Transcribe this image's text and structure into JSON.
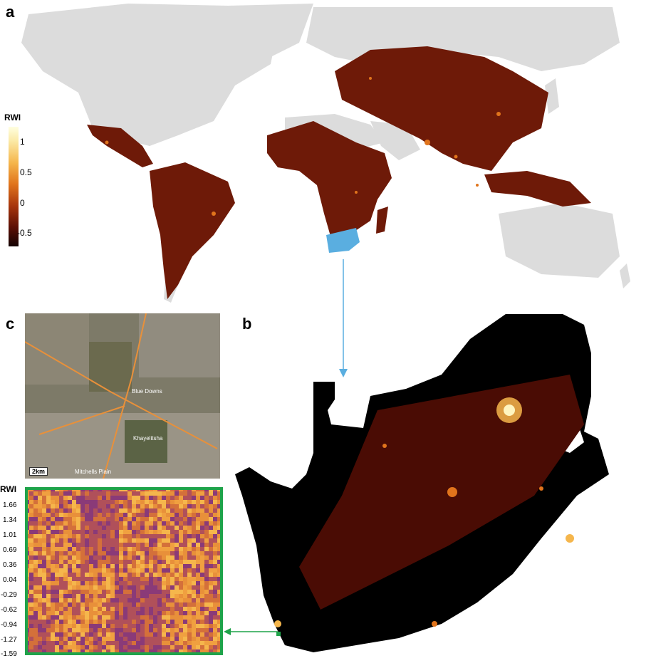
{
  "panels": {
    "a": "a",
    "b": "b",
    "c": "c"
  },
  "world_legend": {
    "title": "RWI",
    "ticks": [
      "1",
      "0.5",
      "0",
      "-0.5"
    ],
    "gradient": [
      "#ffffe0",
      "#f5b64c",
      "#e0741c",
      "#a8360d",
      "#5b0f05",
      "#140303"
    ]
  },
  "satellite": {
    "scale_label": "2km",
    "place_labels": [
      "Blue Downs",
      "Khayelitsha",
      "Mitchells Plain"
    ]
  },
  "heatmap_legend": {
    "title": "RWI",
    "ticks": [
      "1.66",
      "1.34",
      "1.01",
      "0.69",
      "0.36",
      "0.04",
      "-0.29",
      "-0.62",
      "-0.94",
      "-1.27",
      "-1.59"
    ]
  },
  "colors": {
    "land_grey": "#dcdcdc",
    "ocean": "#ffffff",
    "south_africa_highlight": "#5aaee0",
    "arrow_blue": "#5aaee0",
    "arrow_green": "#1fa34a",
    "sa_background": "#000000"
  }
}
